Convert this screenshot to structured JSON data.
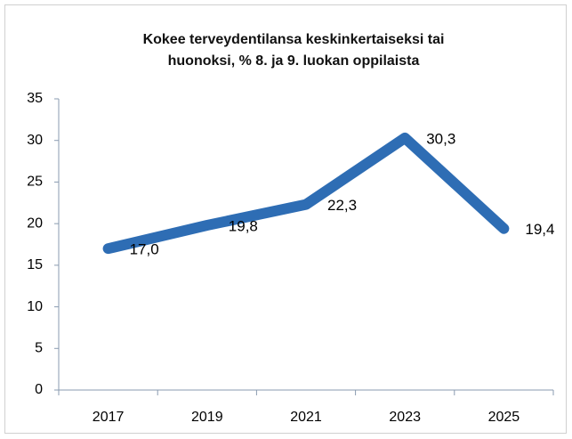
{
  "chart_data": {
    "type": "line",
    "title": [
      "Kokee terveydentilansa keskinkertaiseksi tai",
      "huonoksi, % 8. ja 9. luokan oppilaista"
    ],
    "categories": [
      "2017",
      "2019",
      "2021",
      "2023",
      "2025"
    ],
    "values": [
      17.0,
      19.8,
      22.3,
      30.3,
      19.4
    ],
    "value_labels": [
      "17,0",
      "19,8",
      "22,3",
      "30,3",
      "19,4"
    ],
    "color": "#2e6db4",
    "ylim": [
      0,
      35
    ],
    "yticks": [
      0,
      5,
      10,
      15,
      20,
      25,
      30,
      35
    ],
    "grid": false
  }
}
